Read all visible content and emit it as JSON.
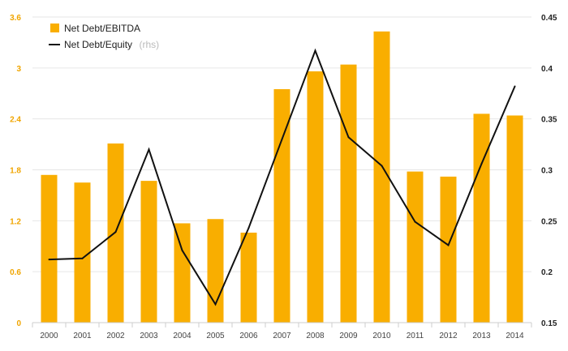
{
  "chart_data": {
    "type": "bar+line",
    "categories": [
      "2000",
      "2001",
      "2002",
      "2003",
      "2004",
      "2005",
      "2006",
      "2007",
      "2008",
      "2009",
      "2010",
      "2011",
      "2012",
      "2013",
      "2014"
    ],
    "series": [
      {
        "name": "Net Debt/EBITDA",
        "type": "bar",
        "axis": "left",
        "color": "#f9ae00",
        "values": [
          1.74,
          1.65,
          2.11,
          1.67,
          1.17,
          1.22,
          1.06,
          2.75,
          2.96,
          3.04,
          3.43,
          1.78,
          1.72,
          2.46,
          2.44
        ]
      },
      {
        "name": "Net Debt/Equity",
        "legend_suffix": "(rhs)",
        "type": "line",
        "axis": "right",
        "color": "#111111",
        "values": [
          0.212,
          0.213,
          0.239,
          0.32,
          0.221,
          0.168,
          0.243,
          0.33,
          0.417,
          0.332,
          0.304,
          0.249,
          0.226,
          0.306,
          0.382
        ]
      }
    ],
    "left_axis": {
      "ticks": [
        "0",
        "0.6",
        "1.2",
        "1.8",
        "2.4",
        "3",
        "3.6"
      ],
      "range": [
        0,
        3.6
      ]
    },
    "right_axis": {
      "ticks": [
        "0.15",
        "0.2",
        "0.25",
        "0.3",
        "0.35",
        "0.4",
        "0.45"
      ],
      "range": [
        0.15,
        0.45
      ]
    },
    "grid": true,
    "legend_position": "top-left"
  }
}
